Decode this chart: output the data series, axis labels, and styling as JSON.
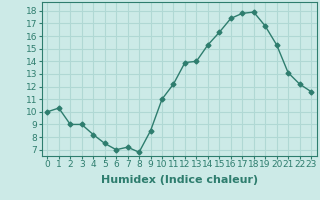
{
  "x": [
    0,
    1,
    2,
    3,
    4,
    5,
    6,
    7,
    8,
    9,
    10,
    11,
    12,
    13,
    14,
    15,
    16,
    17,
    18,
    19,
    20,
    21,
    22,
    23
  ],
  "y": [
    10,
    10.3,
    9,
    9,
    8.2,
    7.5,
    7,
    7.2,
    6.8,
    8.5,
    11,
    12.2,
    13.9,
    14,
    15.3,
    16.3,
    17.4,
    17.8,
    17.9,
    16.8,
    15.3,
    13.1,
    12.2,
    11.6
  ],
  "line_color": "#2e7d6e",
  "marker": "D",
  "marker_size": 2.5,
  "bg_color": "#cceae7",
  "grid_color": "#b0d8d4",
  "xlabel": "Humidex (Indice chaleur)",
  "xlabel_fontsize": 8,
  "ylim": [
    6.5,
    18.7
  ],
  "xlim": [
    -0.5,
    23.5
  ],
  "yticks": [
    7,
    8,
    9,
    10,
    11,
    12,
    13,
    14,
    15,
    16,
    17,
    18
  ],
  "xticks": [
    0,
    1,
    2,
    3,
    4,
    5,
    6,
    7,
    8,
    9,
    10,
    11,
    12,
    13,
    14,
    15,
    16,
    17,
    18,
    19,
    20,
    21,
    22,
    23
  ],
  "tick_fontsize": 6.5,
  "line_width": 1.0
}
